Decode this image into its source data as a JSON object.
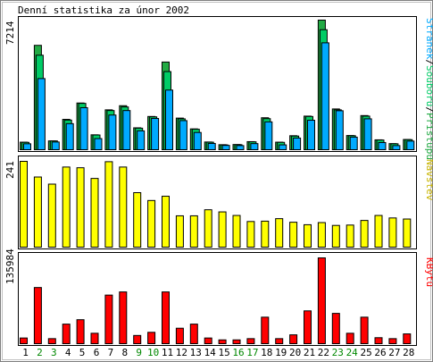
{
  "title": "Denní statistika za únor 2002",
  "colors": {
    "background": "#ffffff",
    "frame": "#000000",
    "pages": "#00aaff",
    "files": "#00cc66",
    "hits": "#22aa44",
    "visits": "#ffff00",
    "kbytes": "#ff0000",
    "weekday_label": "#000000",
    "weekend_label": "#008800"
  },
  "chart_data": [
    {
      "type": "bar",
      "panel": "hits-files-pages",
      "ymax_label": "7214",
      "ylim": [
        0,
        7214
      ],
      "legend": {
        "pages": "Stránek",
        "files": "Souborů",
        "hits": "Přístupů"
      },
      "categories": [
        "1",
        "2",
        "3",
        "4",
        "5",
        "6",
        "7",
        "8",
        "9",
        "10",
        "11",
        "12",
        "13",
        "14",
        "15",
        "16",
        "17",
        "18",
        "19",
        "20",
        "21",
        "22",
        "23",
        "24",
        "25",
        "26",
        "27",
        "28"
      ],
      "series": [
        {
          "name": "Přístupů",
          "values": [
            420,
            5810,
            490,
            1690,
            2600,
            830,
            2220,
            2450,
            1220,
            1850,
            4880,
            1760,
            1160,
            430,
            280,
            290,
            450,
            1780,
            420,
            780,
            1870,
            7214,
            2270,
            790,
            1900,
            550,
            340,
            570
          ]
        },
        {
          "name": "Souborů",
          "values": [
            410,
            5260,
            490,
            1650,
            2580,
            820,
            2180,
            2380,
            1200,
            1830,
            4350,
            1720,
            1140,
            420,
            270,
            280,
            440,
            1730,
            410,
            760,
            1850,
            6680,
            2220,
            780,
            1870,
            540,
            330,
            560
          ]
        },
        {
          "name": "Stránek",
          "values": [
            330,
            3960,
            430,
            1450,
            2340,
            620,
            1930,
            2180,
            1050,
            1740,
            3320,
            1620,
            960,
            350,
            240,
            230,
            340,
            1550,
            270,
            650,
            1640,
            5950,
            2170,
            700,
            1720,
            400,
            230,
            480
          ]
        }
      ]
    },
    {
      "type": "bar",
      "panel": "visits",
      "ymax_label": "241",
      "ylim": [
        0,
        241
      ],
      "legend": {
        "visits": "Návštěv"
      },
      "categories": [
        "1",
        "2",
        "3",
        "4",
        "5",
        "6",
        "7",
        "8",
        "9",
        "10",
        "11",
        "12",
        "13",
        "14",
        "15",
        "16",
        "17",
        "18",
        "19",
        "20",
        "21",
        "22",
        "23",
        "24",
        "25",
        "26",
        "27",
        "28"
      ],
      "series": [
        {
          "name": "Návštěv",
          "values": [
            241,
            197,
            177,
            225,
            223,
            193,
            240,
            225,
            153,
            131,
            143,
            88,
            88,
            105,
            99,
            89,
            72,
            73,
            80,
            70,
            63,
            69,
            61,
            62,
            75,
            89,
            82,
            79
          ]
        }
      ]
    },
    {
      "type": "bar",
      "panel": "kbytes",
      "ymax_label": "135984",
      "ylim": [
        0,
        135984
      ],
      "legend": {
        "kbytes": "KBytů"
      },
      "categories": [
        "1",
        "2",
        "3",
        "4",
        "5",
        "6",
        "7",
        "8",
        "9",
        "10",
        "11",
        "12",
        "13",
        "14",
        "15",
        "16",
        "17",
        "18",
        "19",
        "20",
        "21",
        "22",
        "23",
        "24",
        "25",
        "26",
        "27",
        "28"
      ],
      "series": [
        {
          "name": "KBytů",
          "values": [
            9000,
            89000,
            8000,
            31000,
            38000,
            16500,
            77000,
            82000,
            13000,
            18000,
            82000,
            24500,
            31000,
            9000,
            6000,
            6000,
            8000,
            42000,
            8000,
            14000,
            52000,
            135984,
            48000,
            16500,
            42000,
            9500,
            8000,
            15500
          ]
        }
      ]
    }
  ],
  "x_labels": [
    {
      "text": "1",
      "weekend": false
    },
    {
      "text": "2",
      "weekend": true
    },
    {
      "text": "3",
      "weekend": true
    },
    {
      "text": "4",
      "weekend": false
    },
    {
      "text": "5",
      "weekend": false
    },
    {
      "text": "6",
      "weekend": false
    },
    {
      "text": "7",
      "weekend": false
    },
    {
      "text": "8",
      "weekend": false
    },
    {
      "text": "9",
      "weekend": true
    },
    {
      "text": "10",
      "weekend": true
    },
    {
      "text": "11",
      "weekend": false
    },
    {
      "text": "12",
      "weekend": false
    },
    {
      "text": "13",
      "weekend": false
    },
    {
      "text": "14",
      "weekend": false
    },
    {
      "text": "15",
      "weekend": false
    },
    {
      "text": "16",
      "weekend": true
    },
    {
      "text": "17",
      "weekend": true
    },
    {
      "text": "18",
      "weekend": false
    },
    {
      "text": "19",
      "weekend": false
    },
    {
      "text": "20",
      "weekend": false
    },
    {
      "text": "21",
      "weekend": false
    },
    {
      "text": "22",
      "weekend": false
    },
    {
      "text": "23",
      "weekend": true
    },
    {
      "text": "24",
      "weekend": true
    },
    {
      "text": "25",
      "weekend": false
    },
    {
      "text": "26",
      "weekend": false
    },
    {
      "text": "27",
      "weekend": false
    },
    {
      "text": "28",
      "weekend": false
    }
  ]
}
